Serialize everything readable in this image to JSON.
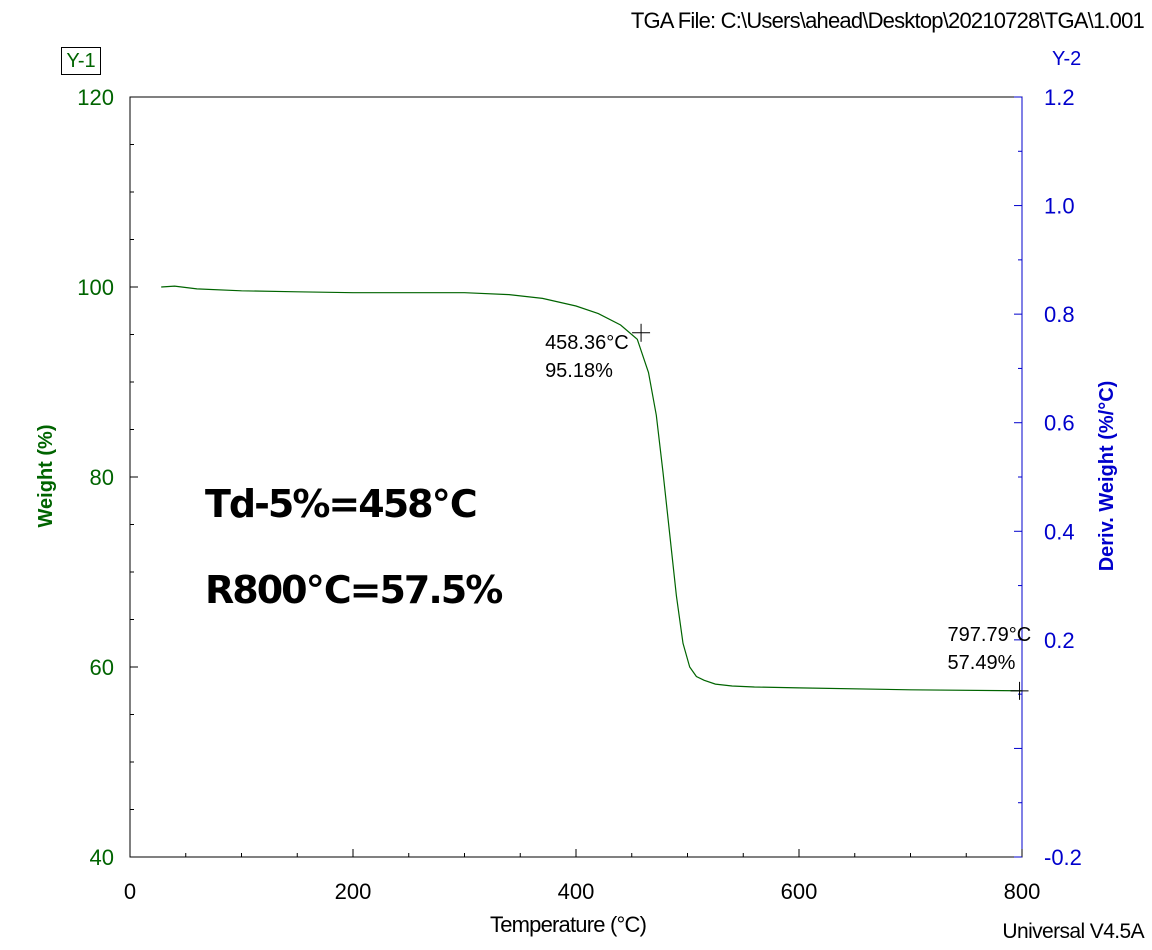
{
  "header": {
    "file_label": "TGA File: C:\\Users\\ahead\\Desktop\\20210728\\TGA\\1.001"
  },
  "axes": {
    "y1_tag": "Y-1",
    "y2_tag": "Y-2"
  },
  "footer": {
    "software": "Universal V4.5A"
  },
  "colors": {
    "weight_curve": "#006400",
    "y1_axis": "#006400",
    "y2_axis": "#0000cc",
    "marker": "#000000"
  },
  "chart_data": {
    "type": "line",
    "xlabel": "Temperature (°C)",
    "ylabel": "Weight (%)",
    "y2label": "Deriv. Weight (%/°C)",
    "xlim": [
      0,
      800
    ],
    "ylim": [
      40,
      120
    ],
    "y2lim": [
      -0.2,
      1.2
    ],
    "x_ticks": [
      0,
      200,
      400,
      600,
      800
    ],
    "y_ticks": [
      40,
      60,
      80,
      100,
      120
    ],
    "y2_ticks": [
      "-0.2",
      "0.2",
      "0.4",
      "0.6",
      "0.8",
      "1.0",
      "1.2"
    ],
    "grid": false,
    "series": [
      {
        "x": [
          28,
          40,
          60,
          100,
          150,
          200,
          250,
          300,
          340,
          370,
          400,
          420,
          440,
          455,
          465,
          472,
          478,
          484,
          490,
          496,
          502,
          508,
          515,
          525,
          540,
          560,
          600,
          700,
          800
        ],
        "y": [
          100.0,
          100.1,
          99.8,
          99.6,
          99.5,
          99.4,
          99.4,
          99.4,
          99.2,
          98.8,
          98.0,
          97.2,
          96.0,
          94.5,
          91.0,
          86.5,
          80.5,
          74.0,
          67.5,
          62.5,
          60.0,
          59.0,
          58.6,
          58.2,
          58.0,
          57.9,
          57.8,
          57.6,
          57.5
        ]
      }
    ],
    "annotations": [
      {
        "x": 458.36,
        "y": 95.18,
        "line1": "458.36°C",
        "line2": "95.18%"
      },
      {
        "x": 797.79,
        "y": 57.49,
        "line1": "797.79°C",
        "line2": "57.49%"
      }
    ],
    "overlay": [
      "Td-5%=458℃",
      "R800℃=57.5%"
    ]
  }
}
